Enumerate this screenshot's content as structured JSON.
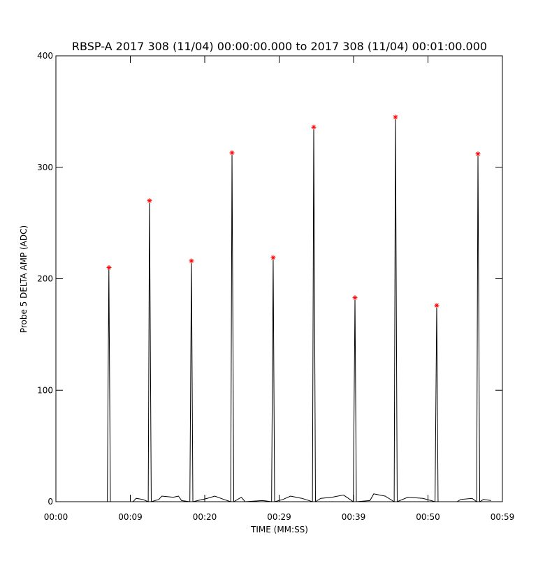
{
  "chart_data": {
    "type": "line",
    "title": "RBSP-A 2017 308 (11/04) 00:00:00.000 to 2017 308 (11/04) 00:01:00.000",
    "xlabel": "TIME (MM:SS)",
    "ylabel": "Probe 5 DELTA AMP (ADC)",
    "color": "#000000",
    "x": [
      0,
      6.8,
      7.0,
      7.2,
      10.2,
      10.6,
      11.5,
      12.2,
      12.37,
      12.6,
      13.6,
      14.0,
      15.5,
      16.2,
      16.6,
      17.7,
      17.91,
      18.1,
      20.0,
      21.0,
      22.2,
      23.1,
      23.27,
      23.5,
      24.5,
      25.0,
      27.3,
      28.5,
      28.71,
      28.9,
      30.0,
      31.0,
      32.5,
      33.9,
      34.07,
      34.3,
      35.0,
      36.5,
      38.0,
      39.3,
      39.52,
      39.7,
      41.5,
      42.0,
      43.5,
      44.7,
      44.87,
      45.1,
      46.5,
      48.5,
      50.1,
      50.32,
      50.5,
      53.0,
      53.5,
      55.0,
      55.6,
      55.77,
      56.0,
      56.5,
      57.5
    ],
    "values": [
      0,
      0,
      210,
      0,
      0,
      3,
      2,
      0,
      270,
      0,
      2,
      5,
      4,
      5,
      1,
      0,
      216,
      0,
      3,
      5,
      2,
      0,
      313,
      0,
      4,
      0,
      1,
      0,
      219,
      0,
      2,
      5,
      3,
      0,
      336,
      0,
      3,
      4,
      6,
      0,
      183,
      0,
      1,
      7,
      5,
      0,
      345,
      0,
      4,
      3,
      0,
      176,
      0,
      0,
      2,
      3,
      0,
      312,
      0,
      2,
      1
    ],
    "peaks": {
      "color": "#ff0000",
      "x": [
        7.02,
        12.37,
        17.91,
        23.27,
        28.71,
        34.07,
        39.52,
        44.87,
        50.32,
        55.77
      ],
      "values": [
        210,
        270,
        216,
        313,
        219,
        336,
        183,
        345,
        176,
        312
      ]
    },
    "xlim": [
      0,
      59
    ],
    "xticks": [
      {
        "value": 0,
        "label": "00:00"
      },
      {
        "value": 9.833,
        "label": "00:09"
      },
      {
        "value": 19.667,
        "label": "00:20"
      },
      {
        "value": 29.5,
        "label": "00:29"
      },
      {
        "value": 39.333,
        "label": "00:39"
      },
      {
        "value": 49.167,
        "label": "00:50"
      },
      {
        "value": 59,
        "label": "00:59"
      }
    ],
    "ylim": [
      0,
      400
    ],
    "yticks": [
      0,
      100,
      200,
      300,
      400
    ]
  }
}
